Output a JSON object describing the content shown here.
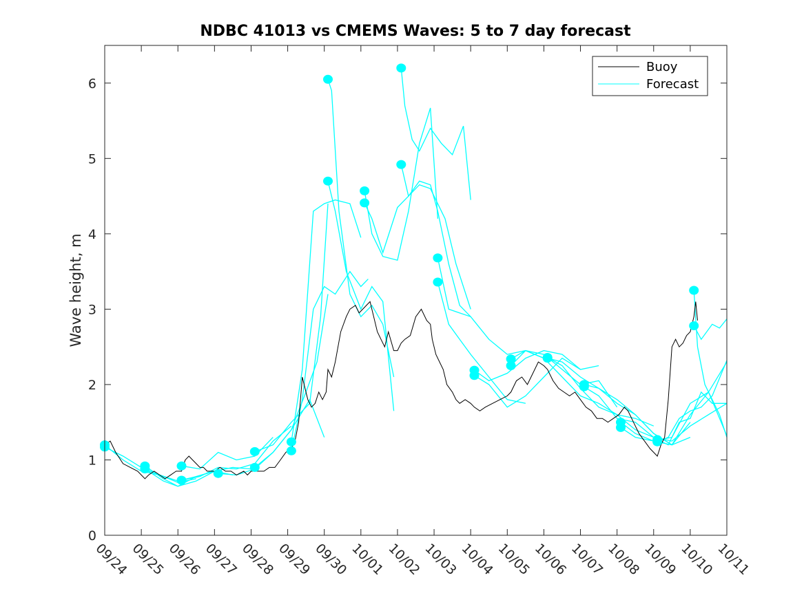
{
  "chart_data": {
    "type": "line",
    "title": "NDBC 41013 vs CMEMS Waves: 5 to 7 day forecast",
    "xlabel": "",
    "ylabel": "Wave height, m",
    "xlim": [
      0,
      17
    ],
    "ylim": [
      0,
      6.5
    ],
    "yticks": [
      0,
      1,
      2,
      3,
      4,
      5,
      6
    ],
    "xtick_labels": [
      "09/24",
      "09/25",
      "09/26",
      "09/27",
      "09/28",
      "09/29",
      "09/30",
      "10/01",
      "10/02",
      "10/03",
      "10/04",
      "10/05",
      "10/06",
      "10/07",
      "10/08",
      "10/09",
      "10/10",
      "10/11"
    ],
    "x_unit": "days since 09/24 00:00",
    "legend": {
      "position": "top-right",
      "entries": [
        "Buoy",
        "Forecast"
      ]
    },
    "colors": {
      "buoy": "#000000",
      "forecast": "#00ffff",
      "axis": "#262626"
    },
    "buoy": {
      "name": "Buoy",
      "x": [
        0,
        0.15,
        0.3,
        0.5,
        0.7,
        0.9,
        1.0,
        1.1,
        1.2,
        1.35,
        1.5,
        1.65,
        1.8,
        1.95,
        2.1,
        2.2,
        2.3,
        2.4,
        2.5,
        2.6,
        2.7,
        2.8,
        2.9,
        3.0,
        3.15,
        3.3,
        3.45,
        3.6,
        3.8,
        3.9,
        4.0,
        4.1,
        4.2,
        4.35,
        4.5,
        4.65,
        4.8,
        4.95,
        5.1,
        5.2,
        5.3,
        5.4,
        5.5,
        5.55,
        5.65,
        5.75,
        5.85,
        5.95,
        6.05,
        6.1,
        6.2,
        6.3,
        6.45,
        6.6,
        6.7,
        6.85,
        6.95,
        7.05,
        7.15,
        7.25,
        7.35,
        7.45,
        7.55,
        7.65,
        7.75,
        7.9,
        8.0,
        8.1,
        8.2,
        8.35,
        8.5,
        8.65,
        8.8,
        8.9,
        8.95,
        9.05,
        9.15,
        9.25,
        9.35,
        9.5,
        9.6,
        9.7,
        9.85,
        10.0,
        10.1,
        10.25,
        10.4,
        10.6,
        10.8,
        11.0,
        11.1,
        11.25,
        11.4,
        11.55,
        11.7,
        11.85,
        12.0,
        12.1,
        12.25,
        12.4,
        12.55,
        12.7,
        12.85,
        13.0,
        13.15,
        13.3,
        13.45,
        13.6,
        13.75,
        13.9,
        14.05,
        14.2,
        14.3,
        14.45,
        14.6,
        14.75,
        14.9,
        15.0,
        15.1,
        15.2,
        15.3,
        15.4,
        15.5,
        15.6,
        15.7,
        15.8,
        15.9,
        16.0,
        16.1,
        16.15,
        16.2
      ],
      "values": [
        1.2,
        1.25,
        1.1,
        0.95,
        0.9,
        0.85,
        0.8,
        0.75,
        0.8,
        0.85,
        0.8,
        0.75,
        0.8,
        0.85,
        0.85,
        1.0,
        1.05,
        1.0,
        0.95,
        0.9,
        0.9,
        0.85,
        0.85,
        0.85,
        0.9,
        0.85,
        0.85,
        0.8,
        0.85,
        0.8,
        0.85,
        0.85,
        0.85,
        0.85,
        0.9,
        0.9,
        1.0,
        1.1,
        1.15,
        1.25,
        1.5,
        2.1,
        1.9,
        1.8,
        1.7,
        1.75,
        1.9,
        1.8,
        1.9,
        2.2,
        2.1,
        2.3,
        2.7,
        2.9,
        3.0,
        3.05,
        2.95,
        3.0,
        3.05,
        3.1,
        2.9,
        2.7,
        2.6,
        2.5,
        2.7,
        2.45,
        2.45,
        2.55,
        2.6,
        2.65,
        2.9,
        3.0,
        2.85,
        2.8,
        2.6,
        2.4,
        2.3,
        2.2,
        2.0,
        1.9,
        1.8,
        1.75,
        1.8,
        1.75,
        1.7,
        1.65,
        1.7,
        1.75,
        1.8,
        1.85,
        1.9,
        2.05,
        2.1,
        2.0,
        2.15,
        2.3,
        2.25,
        2.2,
        2.05,
        1.95,
        1.9,
        1.85,
        1.9,
        1.8,
        1.7,
        1.65,
        1.55,
        1.55,
        1.5,
        1.55,
        1.6,
        1.7,
        1.65,
        1.5,
        1.35,
        1.25,
        1.15,
        1.1,
        1.05,
        1.2,
        1.3,
        1.8,
        2.5,
        2.6,
        2.5,
        2.55,
        2.65,
        2.7,
        2.9,
        3.1,
        2.85
      ]
    },
    "forecast_series": [
      {
        "name": "Forecast",
        "x": [
          0,
          0.5,
          1.0,
          1.5,
          2.0,
          2.5
        ],
        "values": [
          1.2,
          1.0,
          0.85,
          0.8,
          0.7,
          0.75
        ]
      },
      {
        "name": "Forecast",
        "x": [
          0,
          0.5,
          1.0,
          1.5,
          2.0,
          2.5,
          3.0
        ],
        "values": [
          1.17,
          1.05,
          0.9,
          0.8,
          0.72,
          0.78,
          0.85
        ]
      },
      {
        "name": "Forecast",
        "x": [
          1.1,
          1.6,
          2.0,
          2.5,
          3.0,
          3.5
        ],
        "values": [
          0.92,
          0.75,
          0.65,
          0.78,
          0.85,
          0.8
        ]
      },
      {
        "name": "Forecast",
        "x": [
          1.1,
          1.6,
          2.0,
          2.5,
          3.0,
          3.5,
          4.0
        ],
        "values": [
          0.88,
          0.72,
          0.65,
          0.72,
          0.85,
          0.9,
          0.88
        ]
      },
      {
        "name": "Forecast",
        "x": [
          2.1,
          2.6,
          3.1,
          3.6,
          4.1,
          4.6
        ],
        "values": [
          0.92,
          0.88,
          1.1,
          1.0,
          1.05,
          1.3
        ]
      },
      {
        "name": "Forecast",
        "x": [
          2.1,
          2.6,
          3.1,
          3.6,
          4.1,
          4.6,
          5.1
        ],
        "values": [
          0.73,
          0.78,
          0.9,
          0.88,
          0.95,
          1.25,
          1.45
        ]
      },
      {
        "name": "Forecast",
        "x": [
          3.1,
          3.6,
          4.1,
          4.6,
          5.1,
          5.6,
          6.0
        ],
        "values": [
          0.82,
          0.8,
          0.88,
          1.1,
          1.4,
          1.8,
          1.3
        ]
      },
      {
        "name": "Forecast",
        "x": [
          4.1,
          4.6,
          5.1,
          5.6,
          5.9,
          6.1
        ],
        "values": [
          1.11,
          1.2,
          1.5,
          1.75,
          2.9,
          4.4
        ]
      },
      {
        "name": "Forecast",
        "x": [
          4.1,
          4.6,
          5.1,
          5.5,
          5.8,
          6.1
        ],
        "values": [
          0.9,
          1.1,
          1.4,
          1.9,
          2.3,
          3.2
        ]
      },
      {
        "name": "Forecast",
        "x": [
          5.1,
          5.4,
          5.7,
          6.0,
          6.3,
          6.7,
          7.0
        ],
        "values": [
          1.24,
          2.2,
          4.3,
          4.4,
          4.45,
          4.4,
          3.95
        ]
      },
      {
        "name": "Forecast",
        "x": [
          5.1,
          5.4,
          5.7,
          6.0,
          6.3,
          6.7,
          7.0,
          7.2
        ],
        "values": [
          1.12,
          1.8,
          3.0,
          3.3,
          3.2,
          3.5,
          3.3,
          3.4
        ]
      },
      {
        "name": "Forecast",
        "x": [
          6.1,
          6.2,
          6.4,
          6.7,
          7.0,
          7.3,
          7.6,
          7.9
        ],
        "values": [
          6.05,
          5.9,
          4.3,
          3.2,
          2.9,
          3.05,
          2.8,
          2.1
        ]
      },
      {
        "name": "Forecast",
        "x": [
          6.1,
          6.3,
          6.6,
          7.0,
          7.3,
          7.6,
          7.9
        ],
        "values": [
          4.7,
          4.3,
          3.5,
          3.0,
          3.3,
          3.1,
          1.65
        ]
      },
      {
        "name": "Forecast",
        "x": [
          7.1,
          7.3,
          7.6,
          8.0,
          8.3,
          8.6,
          8.9,
          9.1
        ],
        "values": [
          4.57,
          4.0,
          3.7,
          3.65,
          4.3,
          5.2,
          5.67,
          4.2
        ]
      },
      {
        "name": "Forecast",
        "x": [
          7.1,
          7.3,
          7.6,
          8.0,
          8.3,
          8.6,
          8.9,
          9.3,
          9.6,
          10.0
        ],
        "values": [
          4.41,
          4.2,
          3.75,
          4.35,
          4.5,
          4.65,
          4.6,
          4.2,
          3.6,
          3.0
        ]
      },
      {
        "name": "Forecast",
        "x": [
          8.1,
          8.2,
          8.4,
          8.6,
          8.9,
          9.2,
          9.5,
          9.8,
          10.0
        ],
        "values": [
          6.2,
          5.7,
          5.25,
          5.1,
          5.4,
          5.2,
          5.05,
          5.43,
          4.45
        ]
      },
      {
        "name": "Forecast",
        "x": [
          8.1,
          8.3,
          8.6,
          8.9,
          9.1,
          9.4,
          9.7,
          10.0
        ],
        "values": [
          4.92,
          4.5,
          4.7,
          4.65,
          4.3,
          3.6,
          3.05,
          2.9
        ]
      },
      {
        "name": "Forecast",
        "x": [
          9.1,
          9.4,
          9.7,
          10.0,
          10.5,
          11.0,
          11.5,
          12.0
        ],
        "values": [
          3.68,
          3.0,
          2.95,
          2.9,
          2.6,
          2.4,
          2.45,
          2.35
        ]
      },
      {
        "name": "Forecast",
        "x": [
          9.1,
          9.4,
          9.7,
          10.0,
          10.5,
          11.0,
          11.5
        ],
        "values": [
          3.36,
          2.8,
          2.6,
          2.4,
          2.1,
          1.8,
          1.75
        ]
      },
      {
        "name": "Forecast",
        "x": [
          10.1,
          10.5,
          11.0,
          11.5,
          12.0,
          12.5,
          13.0
        ],
        "values": [
          2.19,
          2.05,
          2.15,
          2.35,
          2.45,
          2.4,
          2.2
        ]
      },
      {
        "name": "Forecast",
        "x": [
          10.1,
          10.5,
          11.0,
          11.5,
          12.0,
          12.5,
          13.0,
          13.5
        ],
        "values": [
          2.12,
          2.0,
          1.7,
          1.85,
          2.1,
          2.35,
          2.2,
          2.25
        ]
      },
      {
        "name": "Forecast",
        "x": [
          11.1,
          11.5,
          12.0,
          12.5,
          13.0,
          13.5,
          14.0
        ],
        "values": [
          2.34,
          2.45,
          2.4,
          2.2,
          2.0,
          2.05,
          1.7
        ]
      },
      {
        "name": "Forecast",
        "x": [
          11.1,
          11.5,
          12.0,
          12.5,
          13.0,
          13.5,
          14.0,
          14.5,
          15.0
        ],
        "values": [
          2.25,
          2.45,
          2.35,
          2.1,
          1.85,
          1.75,
          1.6,
          1.55,
          1.45
        ]
      },
      {
        "name": "Forecast",
        "x": [
          12.1,
          12.5,
          13.0,
          13.5,
          14.0,
          14.5,
          15.0
        ],
        "values": [
          2.36,
          2.25,
          1.95,
          1.7,
          1.6,
          1.4,
          1.3
        ]
      },
      {
        "name": "Forecast",
        "x": [
          12.1,
          12.5,
          13.0,
          13.5,
          14.0,
          14.5,
          15.0,
          15.5,
          16.0
        ],
        "values": [
          2.35,
          2.3,
          2.1,
          1.95,
          1.8,
          1.6,
          1.35,
          1.2,
          1.3
        ]
      },
      {
        "name": "Forecast",
        "x": [
          13.1,
          13.5,
          14.0,
          14.5,
          15.0,
          15.5,
          16.0
        ],
        "values": [
          2.0,
          1.95,
          1.75,
          1.6,
          1.35,
          1.2,
          1.5
        ]
      },
      {
        "name": "Forecast",
        "x": [
          13.1,
          13.5,
          14.0,
          14.5,
          15.0,
          15.5,
          16.0,
          16.5,
          17.0
        ],
        "values": [
          1.97,
          1.85,
          1.55,
          1.5,
          1.3,
          1.25,
          1.45,
          1.6,
          1.75
        ]
      },
      {
        "name": "Forecast",
        "x": [
          14.1,
          14.5,
          15.0,
          15.5,
          16.0,
          16.5,
          17.0
        ],
        "values": [
          1.5,
          1.35,
          1.25,
          1.2,
          1.6,
          1.9,
          2.3
        ]
      },
      {
        "name": "Forecast",
        "x": [
          14.1,
          14.5,
          15.0,
          15.5,
          16.0,
          16.5,
          17.0
        ],
        "values": [
          1.43,
          1.3,
          1.25,
          1.3,
          1.75,
          1.9,
          1.32
        ]
      },
      {
        "name": "Forecast",
        "x": [
          15.1,
          15.4,
          15.7,
          16.0,
          16.3,
          16.6,
          17.0
        ],
        "values": [
          1.27,
          1.2,
          1.5,
          1.55,
          1.9,
          1.75,
          1.75
        ]
      },
      {
        "name": "Forecast",
        "x": [
          15.1,
          15.4,
          15.7,
          16.0,
          16.3,
          16.6,
          17.0
        ],
        "values": [
          1.24,
          1.3,
          1.55,
          1.65,
          1.7,
          1.85,
          2.32
        ]
      },
      {
        "name": "Forecast",
        "x": [
          16.1,
          16.2,
          16.4,
          16.6,
          16.8,
          17.0
        ],
        "values": [
          3.25,
          2.5,
          2.0,
          1.8,
          1.6,
          1.3
        ]
      },
      {
        "name": "Forecast",
        "x": [
          16.1,
          16.3,
          16.6,
          16.8,
          17.0
        ],
        "values": [
          2.78,
          2.6,
          2.8,
          2.75,
          2.87
        ]
      }
    ]
  }
}
